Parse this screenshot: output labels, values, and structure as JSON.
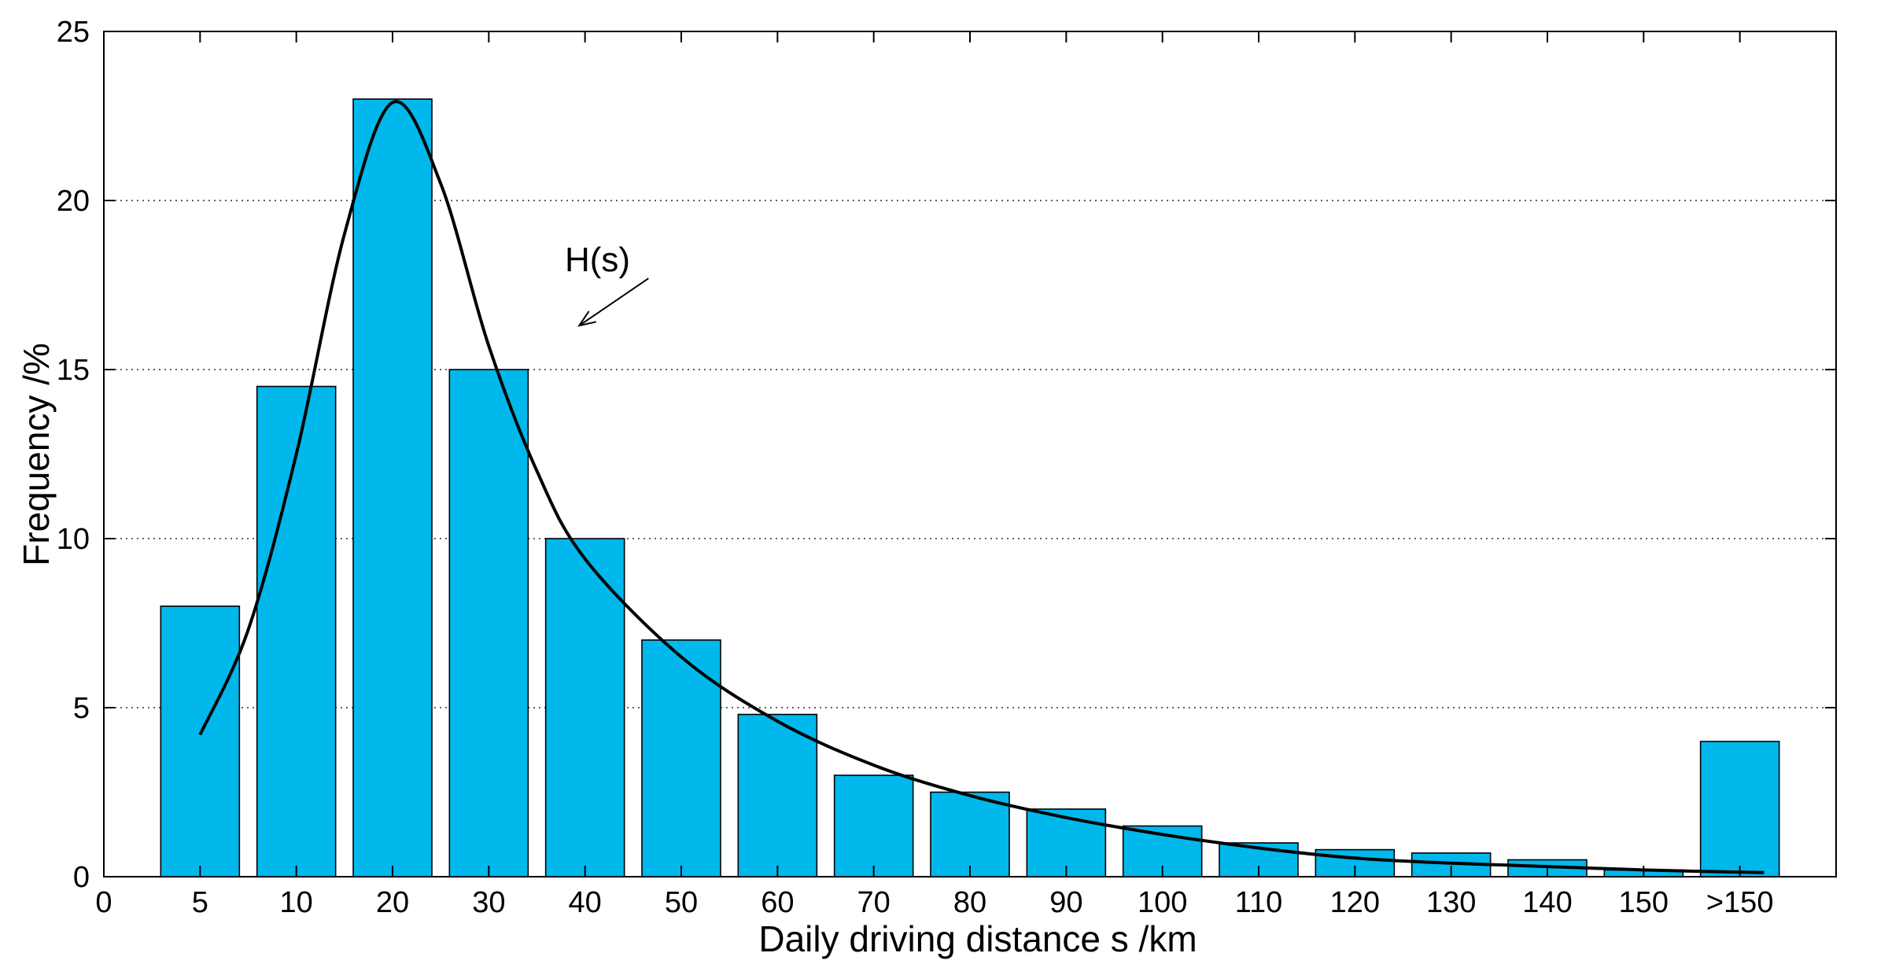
{
  "chart_data": {
    "type": "bar",
    "title": "",
    "xlabel": "Daily driving distance s /km",
    "ylabel": "Frequency /%",
    "ylim": [
      0,
      25
    ],
    "yticks": [
      0,
      5,
      10,
      15,
      20,
      25
    ],
    "ytick_labels": [
      "0",
      "5",
      "10",
      "15",
      "20",
      "25"
    ],
    "grid": "horizontal dotted",
    "x_origin_label": "0",
    "categories": [
      "5",
      "10",
      "20",
      "30",
      "40",
      "50",
      "60",
      "70",
      "80",
      "90",
      "100",
      "110",
      "120",
      "130",
      "140",
      "150",
      ">150"
    ],
    "values": [
      8,
      14.5,
      23,
      15,
      10,
      7,
      4.8,
      3,
      2.5,
      2,
      1.5,
      1,
      0.8,
      0.7,
      0.5,
      0.2,
      4
    ],
    "bar_color": "#00b8ec",
    "curve": {
      "name": "H(s)",
      "color": "#000000",
      "x_position": [
        0,
        0.5,
        1,
        1.5,
        2,
        2.5,
        3,
        3.5,
        4,
        5,
        6,
        7,
        8,
        9,
        10,
        11,
        12,
        13,
        14,
        15,
        16.25
      ],
      "y": [
        4.2,
        7.3,
        12.5,
        19.0,
        22.9,
        20.5,
        15.7,
        12.0,
        9.4,
        6.5,
        4.6,
        3.3,
        2.4,
        1.75,
        1.25,
        0.85,
        0.55,
        0.4,
        0.3,
        0.2,
        0.12
      ]
    },
    "annotation": {
      "text": "H(s)",
      "points_to_x_position": 3.94,
      "points_to_y": 16.3
    }
  }
}
